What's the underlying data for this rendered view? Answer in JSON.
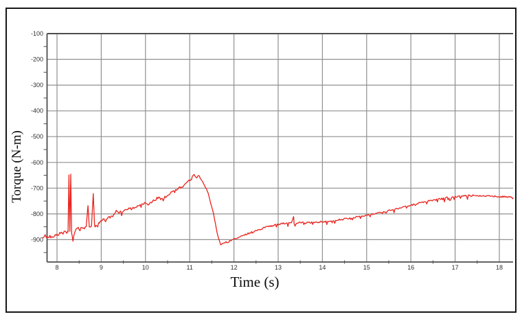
{
  "figure": {
    "background": "#ffffff",
    "border_color": "#161616"
  },
  "chart_data": {
    "type": "line",
    "title": "",
    "xlabel": "Time (s)",
    "ylabel": "Torque (N-m)",
    "x_ticks": [
      8,
      9,
      10,
      11,
      12,
      13,
      14,
      15,
      16,
      17,
      18
    ],
    "x_tick_labels": [
      "8",
      "9",
      "10",
      "11",
      "12",
      "13",
      "14",
      "15",
      "16",
      "17",
      "18"
    ],
    "x_minor_ticks": [
      8.5,
      9.5,
      10.5,
      11.5,
      12.5,
      13.5,
      14.5,
      15.5,
      16.5,
      17.5
    ],
    "y_ticks": [
      -100,
      -200,
      -300,
      -400,
      -500,
      -600,
      -700,
      -800,
      -900
    ],
    "y_tick_labels": [
      "-100",
      "-200",
      "-300",
      "-400",
      "-500",
      "-600",
      "-700",
      "-800",
      "-900"
    ],
    "y_minor_ticks": [
      -150,
      -250,
      -350,
      -450,
      -550,
      -650,
      -750,
      -850,
      -950
    ],
    "xlim": [
      7.68,
      18.31
    ],
    "ylim": [
      -985,
      -100
    ],
    "grid": true,
    "legend": "none",
    "line_color": "#e8231d",
    "grid_color": "#8f8f8f",
    "axis_color": "#4d4d4d",
    "series": [
      {
        "name": "torque",
        "points": [
          [
            7.68,
            -893
          ],
          [
            7.73,
            -885
          ],
          [
            7.78,
            -892
          ],
          [
            7.84,
            -887
          ],
          [
            7.9,
            -895
          ],
          [
            7.96,
            -884
          ],
          [
            8.02,
            -881
          ],
          [
            8.08,
            -872
          ],
          [
            8.13,
            -879
          ],
          [
            8.18,
            -866
          ],
          [
            8.22,
            -872
          ],
          [
            8.25,
            -868
          ],
          [
            8.27,
            -652
          ],
          [
            8.29,
            -870
          ],
          [
            8.31,
            -648
          ],
          [
            8.33,
            -875
          ],
          [
            8.36,
            -903
          ],
          [
            8.4,
            -868
          ],
          [
            8.44,
            -860
          ],
          [
            8.48,
            -856
          ],
          [
            8.52,
            -862
          ],
          [
            8.56,
            -850
          ],
          [
            8.62,
            -855
          ],
          [
            8.66,
            -848
          ],
          [
            8.7,
            -764
          ],
          [
            8.73,
            -851
          ],
          [
            8.78,
            -847
          ],
          [
            8.82,
            -722
          ],
          [
            8.85,
            -848
          ],
          [
            8.9,
            -843
          ],
          [
            8.95,
            -838
          ],
          [
            9.0,
            -828
          ],
          [
            9.05,
            -820
          ],
          [
            9.1,
            -826
          ],
          [
            9.16,
            -816
          ],
          [
            9.22,
            -812
          ],
          [
            9.28,
            -804
          ],
          [
            9.34,
            -790
          ],
          [
            9.4,
            -797
          ],
          [
            9.46,
            -792
          ],
          [
            9.52,
            -788
          ],
          [
            9.58,
            -782
          ],
          [
            9.64,
            -776
          ],
          [
            9.7,
            -772
          ],
          [
            9.76,
            -778
          ],
          [
            9.82,
            -772
          ],
          [
            9.88,
            -767
          ],
          [
            9.94,
            -762
          ],
          [
            10.0,
            -757
          ],
          [
            10.06,
            -762
          ],
          [
            10.12,
            -755
          ],
          [
            10.18,
            -749
          ],
          [
            10.24,
            -742
          ],
          [
            10.3,
            -736
          ],
          [
            10.36,
            -743
          ],
          [
            10.42,
            -737
          ],
          [
            10.48,
            -732
          ],
          [
            10.54,
            -726
          ],
          [
            10.6,
            -714
          ],
          [
            10.66,
            -710
          ],
          [
            10.72,
            -706
          ],
          [
            10.78,
            -698
          ],
          [
            10.84,
            -692
          ],
          [
            10.9,
            -686
          ],
          [
            10.95,
            -678
          ],
          [
            11.0,
            -668
          ],
          [
            11.05,
            -656
          ],
          [
            11.1,
            -648
          ],
          [
            11.14,
            -660
          ],
          [
            11.18,
            -652
          ],
          [
            11.22,
            -658
          ],
          [
            11.26,
            -668
          ],
          [
            11.3,
            -679
          ],
          [
            11.34,
            -690
          ],
          [
            11.38,
            -704
          ],
          [
            11.42,
            -722
          ],
          [
            11.46,
            -748
          ],
          [
            11.5,
            -772
          ],
          [
            11.54,
            -800
          ],
          [
            11.58,
            -836
          ],
          [
            11.62,
            -872
          ],
          [
            11.66,
            -900
          ],
          [
            11.7,
            -921
          ],
          [
            11.74,
            -917
          ],
          [
            11.78,
            -913
          ],
          [
            11.82,
            -910
          ],
          [
            11.86,
            -912
          ],
          [
            11.9,
            -906
          ],
          [
            11.95,
            -903
          ],
          [
            12.0,
            -898
          ],
          [
            12.06,
            -894
          ],
          [
            12.12,
            -890
          ],
          [
            12.18,
            -886
          ],
          [
            12.24,
            -882
          ],
          [
            12.3,
            -878
          ],
          [
            12.38,
            -873
          ],
          [
            12.46,
            -868
          ],
          [
            12.54,
            -863
          ],
          [
            12.62,
            -858
          ],
          [
            12.7,
            -853
          ],
          [
            12.78,
            -849
          ],
          [
            12.86,
            -846
          ],
          [
            12.94,
            -842
          ],
          [
            13.02,
            -840
          ],
          [
            13.1,
            -837
          ],
          [
            13.2,
            -835
          ],
          [
            13.3,
            -836
          ],
          [
            13.35,
            -812
          ],
          [
            13.38,
            -848
          ],
          [
            13.42,
            -834
          ],
          [
            13.52,
            -833
          ],
          [
            13.62,
            -835
          ],
          [
            13.72,
            -833
          ],
          [
            13.82,
            -834
          ],
          [
            13.92,
            -832
          ],
          [
            14.02,
            -830
          ],
          [
            14.12,
            -829
          ],
          [
            14.22,
            -827
          ],
          [
            14.32,
            -825
          ],
          [
            14.42,
            -821
          ],
          [
            14.52,
            -818
          ],
          [
            14.62,
            -816
          ],
          [
            14.72,
            -814
          ],
          [
            14.82,
            -811
          ],
          [
            14.92,
            -808
          ],
          [
            15.02,
            -805
          ],
          [
            15.12,
            -801
          ],
          [
            15.22,
            -798
          ],
          [
            15.32,
            -794
          ],
          [
            15.42,
            -790
          ],
          [
            15.52,
            -787
          ],
          [
            15.62,
            -783
          ],
          [
            15.72,
            -779
          ],
          [
            15.82,
            -775
          ],
          [
            15.92,
            -770
          ],
          [
            16.02,
            -766
          ],
          [
            16.12,
            -761
          ],
          [
            16.22,
            -757
          ],
          [
            16.32,
            -753
          ],
          [
            16.42,
            -749
          ],
          [
            16.52,
            -746
          ],
          [
            16.62,
            -743
          ],
          [
            16.72,
            -740
          ],
          [
            16.82,
            -737
          ],
          [
            16.92,
            -735
          ],
          [
            17.02,
            -733
          ],
          [
            17.12,
            -731
          ],
          [
            17.22,
            -730
          ],
          [
            17.32,
            -729
          ],
          [
            17.42,
            -729
          ],
          [
            17.52,
            -730
          ],
          [
            17.62,
            -730
          ],
          [
            17.72,
            -731
          ],
          [
            17.82,
            -732
          ],
          [
            17.92,
            -732
          ],
          [
            18.02,
            -734
          ],
          [
            18.1,
            -733
          ],
          [
            18.18,
            -736
          ],
          [
            18.24,
            -734
          ],
          [
            18.31,
            -739
          ]
        ]
      }
    ],
    "noise": {
      "seed": 1337,
      "base_amp": 4.5,
      "drop_amp": 2.5,
      "late_amp": 3,
      "downtick_prob": 0.1,
      "downtick_min": 5,
      "downtick_max": 13
    }
  }
}
